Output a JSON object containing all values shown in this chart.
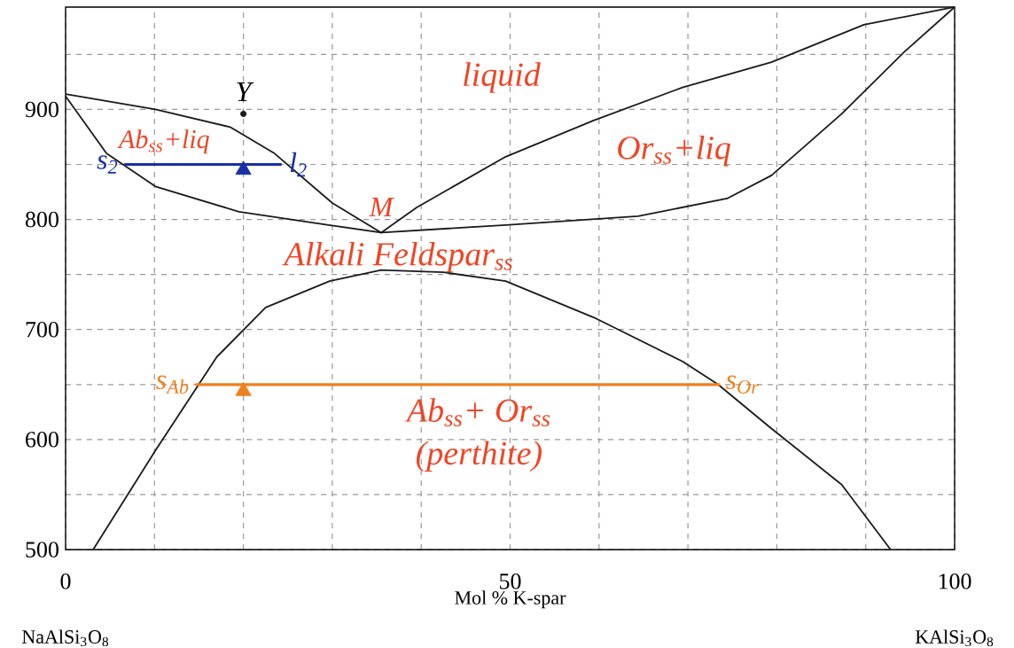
{
  "chart_data": {
    "type": "line",
    "xlabel": "Mol % K-spar",
    "xlim": [
      0,
      100
    ],
    "ylim": [
      500,
      993
    ],
    "grid": true,
    "xticks": [
      0,
      {
        "value": 10,
        "label": null
      },
      {
        "value": 20,
        "label": null
      },
      {
        "value": 30,
        "label": null
      },
      {
        "value": 40,
        "label": null
      },
      50,
      {
        "value": 60,
        "label": null
      },
      {
        "value": 70,
        "label": null
      },
      {
        "value": 80,
        "label": null
      },
      {
        "value": 90,
        "label": null
      },
      100
    ],
    "yticks": [
      500,
      {
        "value": 550,
        "label": null
      },
      600,
      {
        "value": 650,
        "label": null
      },
      700,
      {
        "value": 750,
        "label": null
      },
      800,
      {
        "value": 850,
        "label": null
      },
      900,
      {
        "value": 950,
        "label": null
      }
    ],
    "series": [
      {
        "color": "#1a1a1a",
        "x": [
          0,
          10.1,
          18.5,
          23.5,
          30,
          35.5,
          39.5,
          49.5,
          59.4,
          69.4,
          79.4,
          89.8,
          100
        ],
        "values": [
          914,
          900,
          884,
          860,
          815,
          788,
          811,
          857,
          890,
          920,
          943,
          977,
          993
        ]
      },
      {
        "color": "#1a1a1a",
        "x": [
          0,
          4.6,
          10.1,
          19.5,
          29.6,
          35.5,
          49.5,
          64.4,
          74.4,
          79.4,
          87.3,
          94.3,
          100
        ],
        "values": [
          912,
          860,
          830,
          807,
          795,
          788,
          795,
          803,
          819,
          840,
          896,
          952,
          993
        ]
      },
      {
        "color": "#1a1a1a",
        "x": [
          3.1,
          10.1,
          17,
          22.5,
          29.7,
          35.5,
          42.5,
          49.5,
          59.4,
          69.4,
          73.4,
          79.4,
          87.3,
          92.8
        ],
        "values": [
          500,
          590,
          675,
          720,
          744,
          754,
          752,
          744,
          711,
          671,
          650,
          610,
          559,
          500
        ]
      },
      {
        "color": "#1a2fa8",
        "x": [
          6.6,
          24.3
        ],
        "values": [
          850,
          850
        ]
      },
      {
        "color": "#f07f1e",
        "x": [
          14.6,
          73.6
        ],
        "values": [
          650,
          650
        ]
      },
      {
        "type": "scatter",
        "marker": "triangle",
        "color": "#1a2fa8",
        "x": [
          20
        ],
        "values": [
          845
        ]
      },
      {
        "type": "scatter",
        "marker": "triangle",
        "color": "#f07f1e",
        "x": [
          20
        ],
        "values": [
          644
        ]
      },
      {
        "type": "scatter",
        "marker": "circle",
        "color": "#1a1a1a",
        "x": [
          20
        ],
        "values": [
          896
        ]
      }
    ],
    "annotations": [
      "liquid",
      "Or$_{ss}$+liq",
      "Ab$_{ss}$+liq",
      "Alkali Feldspar$_{ss}$",
      "Ab$_{ss}$+ Or$_{ss}$",
      "(perthite)",
      "NaAlSi$_{3}$O$_{8}$",
      "KAlSi$_{3}$O$_{8}$",
      {
        "text": "s$_{2}$",
        "x": 6.6,
        "y": 850
      },
      {
        "text": "l$_{2}$",
        "x": 24.3,
        "y": 850
      },
      {
        "text": "M",
        "x": 35.5,
        "y": 788
      },
      {
        "text": "s$_{Ab}$",
        "x": 14.6,
        "y": 650
      },
      {
        "text": "s$_{Or}$",
        "x": 73.6,
        "y": 650
      },
      {
        "text": "Y",
        "x": 20,
        "y": 896
      }
    ]
  }
}
